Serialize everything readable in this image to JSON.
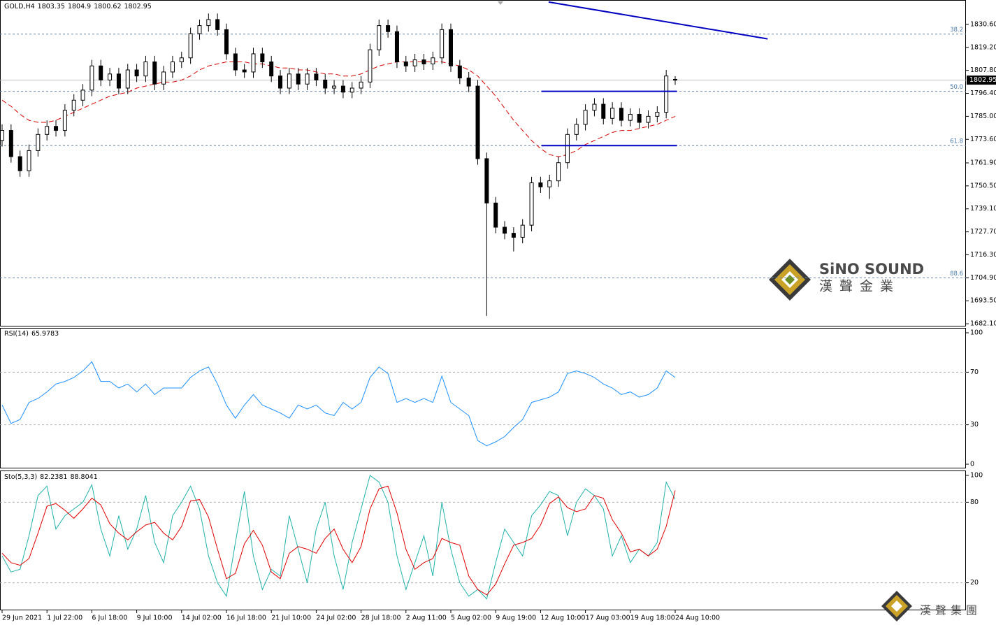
{
  "chart_data": [
    {
      "type": "candlestick",
      "title": "GOLD,H4",
      "categories": [
        "29 Jun 2021",
        null,
        null,
        null,
        null,
        "1 Jul 22:00",
        null,
        null,
        null,
        null,
        "6 Jul 18:00",
        null,
        null,
        null,
        null,
        "9 Jul 10:00",
        null,
        null,
        null,
        null,
        "14 Jul 02:00",
        null,
        null,
        null,
        null,
        "16 Jul 18:00",
        null,
        null,
        null,
        null,
        "21 Jul 10:00",
        null,
        null,
        null,
        null,
        "24 Jul 02:00",
        null,
        null,
        null,
        null,
        "28 Jul 18:00",
        null,
        null,
        null,
        null,
        "2 Aug 11:00",
        null,
        null,
        null,
        null,
        "5 Aug 02:00",
        null,
        null,
        null,
        null,
        "9 Aug 19:00",
        null,
        null,
        null,
        null,
        "12 Aug 10:00",
        null,
        null,
        null,
        null,
        "17 Aug 03:00",
        null,
        null,
        null,
        null,
        "19 Aug 18:00",
        null,
        null,
        null,
        null,
        "24 Aug 10:00"
      ],
      "open": [
        1773,
        1778,
        1765,
        1758,
        1768,
        1776,
        1780,
        1778,
        1788,
        1793,
        1798,
        1810,
        1803,
        1806,
        1799,
        1808,
        1805,
        1812,
        1801,
        1807,
        1812,
        1814,
        1826,
        1830,
        1833,
        1828,
        1816,
        1808,
        1807,
        1816,
        1812,
        1805,
        1799,
        1806,
        1801,
        1806,
        1803,
        1799,
        1800,
        1797,
        1799,
        1802,
        1818,
        1830,
        1827,
        1812,
        1810,
        1813,
        1811,
        1814,
        1828,
        1810,
        1804,
        1800,
        1764,
        1742,
        1730,
        1727,
        1725,
        1731,
        1752,
        1750,
        1753,
        1762,
        1776,
        1781,
        1788,
        1791,
        1784,
        1789,
        1783,
        1786,
        1782,
        1785,
        1787,
        1803.35
      ],
      "high": [
        1781,
        1781,
        1768,
        1771,
        1779,
        1783,
        1783,
        1791,
        1796,
        1801,
        1813,
        1813,
        1809,
        1809,
        1811,
        1811,
        1815,
        1815,
        1810,
        1815,
        1817,
        1829,
        1833,
        1836,
        1836,
        1831,
        1819,
        1811,
        1819,
        1819,
        1815,
        1808,
        1809,
        1809,
        1809,
        1809,
        1806,
        1803,
        1803,
        1802,
        1805,
        1821,
        1833,
        1833,
        1830,
        1815,
        1816,
        1816,
        1817,
        1831,
        1831,
        1813,
        1807,
        1803,
        1767,
        1745,
        1733,
        1730,
        1734,
        1755,
        1755,
        1756,
        1765,
        1779,
        1784,
        1791,
        1794,
        1794,
        1792,
        1792,
        1789,
        1789,
        1788,
        1790,
        1808,
        1804.9
      ],
      "low": [
        1770,
        1762,
        1755,
        1755,
        1765,
        1773,
        1775,
        1775,
        1785,
        1790,
        1795,
        1800,
        1800,
        1796,
        1796,
        1802,
        1802,
        1798,
        1798,
        1804,
        1809,
        1811,
        1823,
        1827,
        1825,
        1813,
        1805,
        1804,
        1804,
        1809,
        1802,
        1796,
        1796,
        1798,
        1798,
        1800,
        1796,
        1796,
        1794,
        1794,
        1796,
        1799,
        1815,
        1824,
        1809,
        1807,
        1807,
        1808,
        1808,
        1811,
        1807,
        1801,
        1797,
        1761,
        1686,
        1727,
        1724,
        1718,
        1722,
        1728,
        1747,
        1744,
        1750,
        1759,
        1773,
        1778,
        1785,
        1781,
        1781,
        1780,
        1780,
        1779,
        1779,
        1782,
        1784,
        1800.62
      ],
      "close": [
        1778,
        1765,
        1758,
        1768,
        1776,
        1780,
        1778,
        1788,
        1793,
        1798,
        1810,
        1803,
        1806,
        1799,
        1808,
        1805,
        1812,
        1801,
        1807,
        1812,
        1814,
        1826,
        1830,
        1833,
        1828,
        1816,
        1808,
        1807,
        1816,
        1812,
        1805,
        1799,
        1806,
        1801,
        1806,
        1803,
        1799,
        1800,
        1797,
        1799,
        1802,
        1818,
        1830,
        1827,
        1812,
        1810,
        1813,
        1811,
        1814,
        1828,
        1810,
        1804,
        1800,
        1764,
        1742,
        1730,
        1727,
        1725,
        1731,
        1752,
        1750,
        1753,
        1762,
        1776,
        1781,
        1788,
        1791,
        1784,
        1789,
        1783,
        1786,
        1782,
        1785,
        1787,
        1805,
        1802.95
      ],
      "ylim": [
        1681.1,
        1842.0
      ],
      "yticks": [
        {
          "value": 1830.6,
          "label": "1830.60"
        },
        {
          "value": 1819.2,
          "label": "1819.20"
        },
        {
          "value": 1807.8,
          "label": "1807.80"
        },
        {
          "value": 1796.4,
          "label": "1796.40"
        },
        {
          "value": 1785,
          "label": "1785.00"
        },
        {
          "value": 1773.6,
          "label": "1773.60"
        },
        {
          "value": 1761.9,
          "label": "1761.90"
        },
        {
          "value": 1750.5,
          "label": "1750.50"
        },
        {
          "value": 1739.1,
          "label": "1739.10"
        },
        {
          "value": 1727.7,
          "label": "1727.70"
        },
        {
          "value": 1716.3,
          "label": "1716.30"
        },
        {
          "value": 1704.9,
          "label": "1704.90"
        },
        {
          "value": 1693.5,
          "label": "1693.50"
        },
        {
          "value": 1682.1,
          "label": "1682.10"
        }
      ],
      "moving_average": {
        "color": "#d40000",
        "values": [
          1793,
          1790,
          1786,
          1783,
          1782,
          1782,
          1783,
          1785,
          1787,
          1789,
          1791,
          1793,
          1795,
          1796,
          1797,
          1799,
          1800,
          1801,
          1802,
          1802,
          1803,
          1805,
          1808,
          1810,
          1811,
          1812,
          1812,
          1812,
          1811,
          1811,
          1810,
          1809,
          1809,
          1808,
          1808,
          1807,
          1806,
          1806,
          1805,
          1805,
          1806,
          1808,
          1810,
          1811,
          1812,
          1812,
          1812,
          1812,
          1812,
          1812,
          1811,
          1810,
          1808,
          1805,
          1800,
          1795,
          1789,
          1783,
          1778,
          1773,
          1769,
          1766,
          1765,
          1766,
          1768,
          1771,
          1773,
          1775,
          1777,
          1778,
          1778,
          1779,
          1780,
          1781,
          1783,
          1785
        ]
      },
      "fib_levels": [
        {
          "label": "38.2",
          "value": 1825.8
        },
        {
          "label": "50.0",
          "value": 1797.4
        },
        {
          "label": "61.8",
          "value": 1770.5
        },
        {
          "label": "88.6",
          "value": 1704.9
        }
      ],
      "levels": [
        {
          "value": 1797.4,
          "from": 60.1,
          "to": 75.2
        },
        {
          "value": 1770.5,
          "from": 60.1,
          "to": 75.2
        }
      ],
      "trend_line": {
        "from": 60.9,
        "from_value": 1841.7,
        "to": 85.3,
        "to_value": 1823.4
      },
      "line_color": "#0000c0"
    },
    {
      "type": "line",
      "name": "RSI(14)",
      "color": "#1e90ff",
      "values": [
        45,
        31,
        34,
        47,
        50,
        55,
        61,
        63,
        66,
        71,
        78,
        63,
        63,
        58,
        61,
        55,
        61,
        53,
        58,
        58,
        58,
        66,
        71,
        74,
        61,
        45,
        35,
        45,
        53,
        45,
        42,
        39,
        35,
        45,
        42,
        45,
        39,
        37,
        47,
        42,
        47,
        66,
        74,
        69,
        47,
        50,
        47,
        50,
        47,
        67,
        47,
        42,
        37,
        18,
        14,
        17,
        21,
        28,
        34,
        47,
        49,
        51,
        55,
        69,
        71,
        69,
        66,
        61,
        58,
        53,
        55,
        51,
        53,
        58,
        71,
        65.9783
      ],
      "ylim": [
        0,
        100
      ],
      "yticks": [
        0,
        30,
        70,
        100
      ]
    },
    {
      "type": "line",
      "name": "Sto(5,3,3)",
      "series": [
        {
          "color": "#20b2aa",
          "values": [
            40,
            28,
            30,
            55,
            85,
            92,
            60,
            70,
            75,
            80,
            93,
            60,
            40,
            70,
            45,
            60,
            85,
            50,
            35,
            70,
            80,
            92,
            75,
            40,
            20,
            10,
            50,
            88,
            40,
            15,
            30,
            25,
            70,
            45,
            20,
            60,
            80,
            40,
            15,
            50,
            75,
            100,
            95,
            80,
            40,
            15,
            35,
            55,
            25,
            80,
            45,
            20,
            10,
            15,
            8,
            35,
            60,
            50,
            40,
            70,
            78,
            88,
            85,
            55,
            80,
            90,
            85,
            75,
            40,
            55,
            35,
            45,
            40,
            50,
            95,
            82.2381
          ]
        },
        {
          "color": "#e00000",
          "values": [
            42,
            35,
            33,
            38,
            57,
            77,
            79,
            74,
            68,
            75,
            83,
            78,
            64,
            57,
            52,
            58,
            63,
            65,
            57,
            52,
            62,
            81,
            82,
            69,
            45,
            23,
            27,
            49,
            59,
            48,
            28,
            23,
            42,
            47,
            45,
            42,
            53,
            60,
            45,
            35,
            47,
            75,
            90,
            92,
            72,
            45,
            30,
            35,
            38,
            53,
            50,
            48,
            25,
            15,
            11,
            19,
            34,
            48,
            50,
            53,
            63,
            79,
            84,
            76,
            73,
            75,
            85,
            83,
            67,
            57,
            43,
            45,
            40,
            45,
            62,
            88.8041
          ]
        }
      ],
      "ylim": [
        0,
        100
      ],
      "yticks": [
        20,
        80,
        100
      ]
    }
  ],
  "watermark": {
    "brand": "SiNO SOUND",
    "chinese_name": "漢聲金業"
  },
  "footer_logo": "漢聲集團"
}
